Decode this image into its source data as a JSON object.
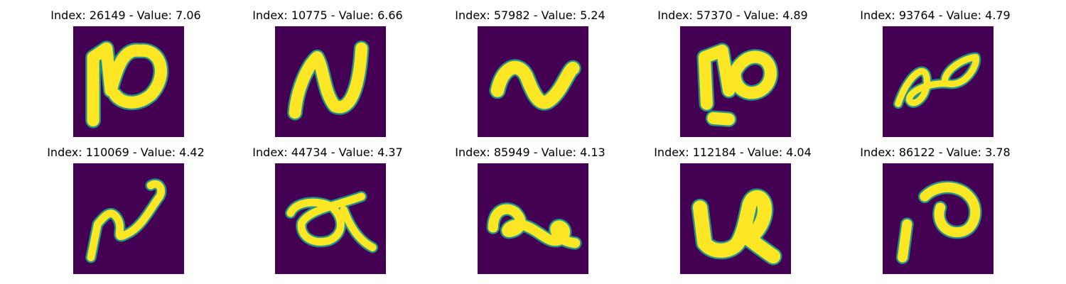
{
  "figure": {
    "colors": {
      "background": "#440154",
      "edge": "#21918c",
      "stroke": "#fde725"
    },
    "panels": [
      {
        "title": "Index: 26149 - Value: 7.06",
        "index": "26149",
        "value": "7.06",
        "shape": "stylized-N-loop"
      },
      {
        "title": "Index: 10775 - Value: 6.66",
        "index": "10775",
        "value": "6.66",
        "shape": "stylized-N"
      },
      {
        "title": "Index: 57982 - Value: 5.24",
        "index": "57982",
        "value": "5.24",
        "shape": "wave-tilde"
      },
      {
        "title": "Index: 57370 - Value: 4.89",
        "index": "57370",
        "value": "4.89",
        "shape": "hook-loop-with-dash"
      },
      {
        "title": "Index: 93764 - Value: 4.79",
        "index": "93764",
        "value": "4.79",
        "shape": "double-loop-diagonal"
      },
      {
        "title": "Index: 110069 - Value: 4.42",
        "index": "110069",
        "value": "4.42",
        "shape": "curl-loop"
      },
      {
        "title": "Index: 44734 - Value: 4.37",
        "index": "44734",
        "value": "4.37",
        "shape": "alpha-loop"
      },
      {
        "title": "Index: 85949 - Value: 4.13",
        "index": "85949",
        "value": "4.13",
        "shape": "double-loop-horizontal"
      },
      {
        "title": "Index: 112184 - Value: 4.04",
        "index": "112184",
        "value": "4.04",
        "shape": "thick-u-tail"
      },
      {
        "title": "Index: 86122 - Value: 3.78",
        "index": "86122",
        "value": "3.78",
        "shape": "stroke-and-loop"
      }
    ]
  }
}
